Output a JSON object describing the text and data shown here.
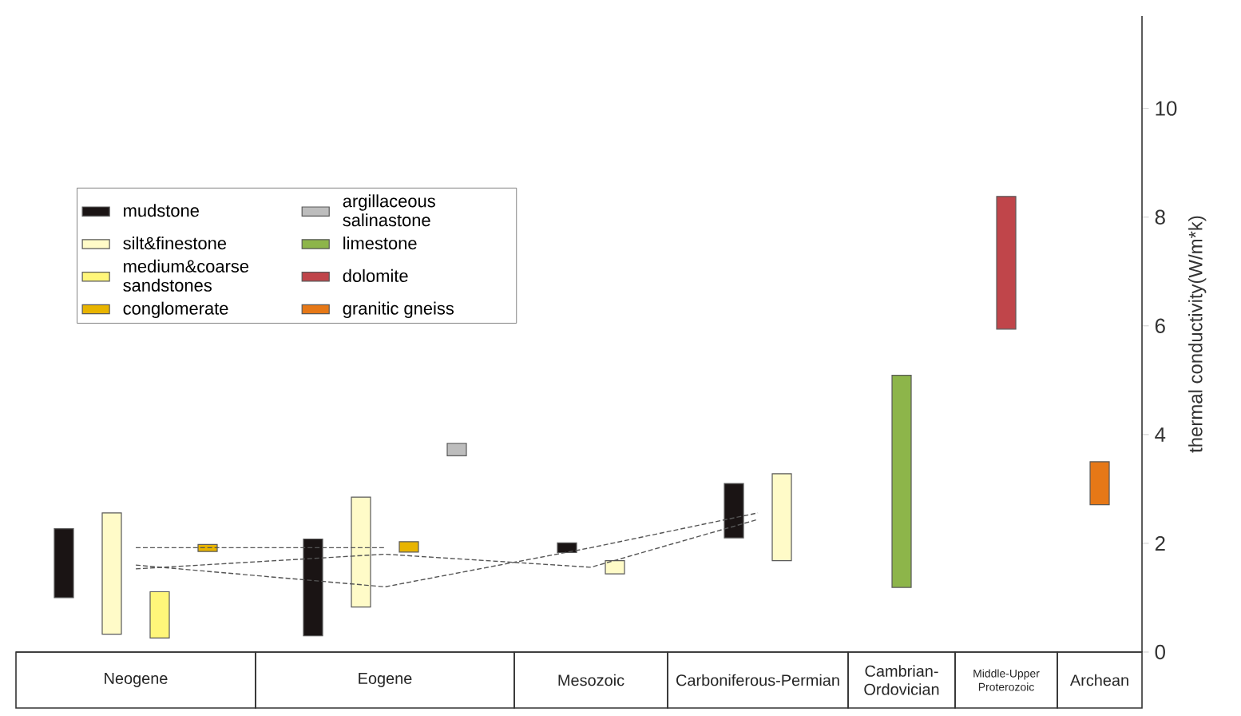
{
  "chart_data": {
    "type": "bar",
    "ylabel": "thermal conductivity(W/m*k)",
    "categories": [
      "Neogene",
      "Eogene",
      "Mesozoic",
      "Carboniferous-Permian",
      "Cambrian-Ordovician",
      "Middle-Upper Proterozoic",
      "Archean"
    ],
    "ylim": [
      0,
      11.7
    ],
    "yticks": [
      0,
      2,
      4,
      6,
      8,
      10
    ],
    "legend": "top left",
    "series": [
      {
        "name": "mudstone",
        "color": "#1a1414",
        "base": [
          1.0,
          0.3,
          1.83,
          2.1,
          null,
          null,
          null
        ],
        "values": [
          1.27,
          1.78,
          0.18,
          1.0,
          null,
          null,
          null
        ]
      },
      {
        "name": "silt&finestone",
        "color": "#fffbc8",
        "base": [
          0.33,
          0.83,
          1.44,
          1.68,
          null,
          null,
          null
        ],
        "values": [
          2.23,
          2.02,
          0.24,
          1.6,
          null,
          null,
          null
        ]
      },
      {
        "name": "medium&coarse sandstones",
        "color": "#fff67a",
        "base": [
          0.26,
          null,
          null,
          null,
          null,
          null,
          null
        ],
        "values": [
          0.85,
          null,
          null,
          null,
          null,
          null,
          null
        ]
      },
      {
        "name": "conglomerate",
        "color": "#e8b400",
        "base": [
          1.85,
          1.84,
          null,
          null,
          null,
          null,
          null
        ],
        "values": [
          0.13,
          0.19,
          null,
          null,
          null,
          null,
          null
        ]
      },
      {
        "name": "argillaceous salinastone",
        "color": "#bdbdbd",
        "base": [
          null,
          3.61,
          null,
          null,
          null,
          null,
          null
        ],
        "values": [
          null,
          0.23,
          null,
          null,
          null,
          null,
          null
        ]
      },
      {
        "name": "limestone",
        "color": "#8db54a",
        "base": [
          null,
          null,
          null,
          null,
          1.19,
          null,
          null
        ],
        "values": [
          null,
          null,
          null,
          null,
          3.9,
          null,
          null
        ]
      },
      {
        "name": "dolomite",
        "color": "#c0454a",
        "base": [
          null,
          null,
          null,
          null,
          null,
          5.94,
          null
        ],
        "values": [
          null,
          null,
          null,
          null,
          null,
          2.44,
          null
        ]
      },
      {
        "name": "granitic gneiss",
        "color": "#e67817",
        "base": [
          null,
          null,
          null,
          null,
          null,
          null,
          2.71
        ],
        "values": [
          null,
          null,
          null,
          null,
          null,
          null,
          0.79
        ]
      },
      {
        "type": "line",
        "line_style": "dashed",
        "color": "#555555",
        "values": [
          1.6,
          1.2,
          1.92,
          2.56,
          null,
          null,
          null
        ]
      },
      {
        "type": "line",
        "line_style": "dashed",
        "color": "#555555",
        "values": [
          1.53,
          1.8,
          1.56,
          2.44,
          null,
          null,
          null
        ]
      },
      {
        "type": "line",
        "line_style": "dashed",
        "color": "#555555",
        "values": [
          1.92,
          1.92,
          null,
          null,
          null,
          null,
          null
        ]
      }
    ]
  }
}
